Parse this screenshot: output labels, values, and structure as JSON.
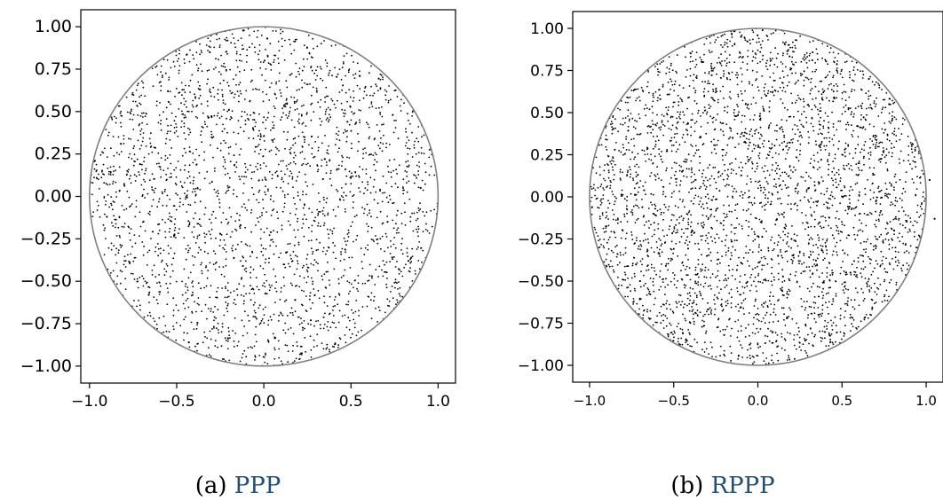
{
  "colors": {
    "points": "#000000",
    "circle": "#808080",
    "axes": "#000000",
    "caption_link": "#1f4e79"
  },
  "chart_data": [
    {
      "type": "scatter",
      "title": "",
      "xlabel": "",
      "ylabel": "",
      "xlim": [
        -1.05,
        1.1
      ],
      "ylim": [
        -1.1,
        1.1
      ],
      "x_ticks": [
        -1.0,
        -0.5,
        0.0,
        0.5,
        1.0
      ],
      "x_tick_labels": [
        "−1.0",
        "−0.5",
        "0.0",
        "0.5",
        "1.0"
      ],
      "y_ticks": [
        1.0,
        0.75,
        0.5,
        0.25,
        0.0,
        -0.25,
        -0.5,
        -0.75,
        -1.0
      ],
      "y_tick_labels": [
        "1.00",
        "0.75",
        "0.50",
        "0.25",
        "0.00",
        "−0.25",
        "−0.50",
        "−0.75",
        "−1.00"
      ],
      "boundary": {
        "shape": "circle",
        "center": [
          0,
          0
        ],
        "radius": 1.0
      },
      "grid": false,
      "series": [
        {
          "x": [
            -0.82,
            -0.55,
            -0.31,
            -0.12,
            0.08,
            0.27,
            0.48,
            0.71,
            0.9,
            -0.66,
            -0.2,
            0.35,
            0.62,
            -0.9,
            -0.43,
            0.02,
            0.55,
            0.83,
            -0.71,
            -0.25,
            0.18,
            0.74
          ],
          "y": [
            0.31,
            0.62,
            0.85,
            -0.41,
            0.12,
            -0.73,
            0.44,
            -0.15,
            0.05,
            -0.58,
            0.51,
            0.22,
            -0.47,
            -0.12,
            -0.86,
            0.93,
            0.71,
            -0.38,
            0.19,
            -0.22,
            -0.61,
            0.48
          ]
        }
      ]
    },
    {
      "type": "scatter",
      "title": "",
      "xlabel": "",
      "ylabel": "",
      "xlim": [
        -1.1,
        1.1
      ],
      "ylim": [
        -1.1,
        1.1
      ],
      "x_ticks": [
        -1.0,
        -0.5,
        0.0,
        0.5,
        1.0
      ],
      "x_tick_labels": [
        "−1.0",
        "−0.5",
        "0.0",
        "0.5",
        "1.0"
      ],
      "y_ticks": [
        1.0,
        0.75,
        0.5,
        0.25,
        0.0,
        -0.25,
        -0.5,
        -0.75,
        -1.0
      ],
      "y_tick_labels": [
        "1.00",
        "0.75",
        "0.50",
        "0.25",
        "0.00",
        "−0.25",
        "−0.50",
        "−0.75",
        "−1.00"
      ],
      "boundary": {
        "shape": "circle",
        "center": [
          0,
          0
        ],
        "radius": 1.0
      },
      "grid": false,
      "series": [
        {
          "x": [
            -0.85,
            -0.58,
            -0.33,
            -0.1,
            0.12,
            0.36,
            0.59,
            0.81,
            -0.7,
            -0.45,
            -0.2,
            0.05,
            0.3,
            0.55,
            0.78,
            -0.62,
            -0.15,
            0.2,
            0.66,
            0.95,
            1.02,
            1.05
          ],
          "y": [
            0.28,
            0.58,
            0.8,
            0.95,
            -0.35,
            -0.7,
            0.42,
            -0.2,
            -0.5,
            0.15,
            -0.82,
            0.6,
            0.05,
            -0.45,
            0.55,
            -0.1,
            0.35,
            -0.25,
            0.7,
            0.3,
            0.1,
            -0.13
          ]
        }
      ]
    }
  ],
  "captions": [
    {
      "prefix": "(a)",
      "label": "PPP"
    },
    {
      "prefix": "(b)",
      "label": "RPPP"
    }
  ]
}
